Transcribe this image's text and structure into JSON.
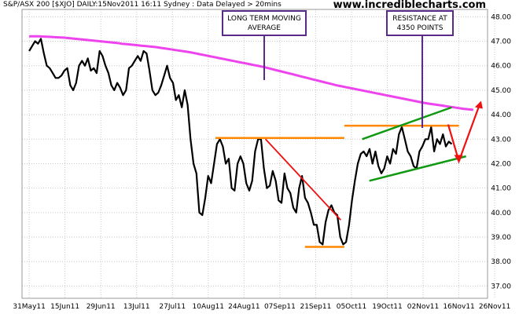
{
  "header": "S&P/ASX 200 [$XJO] DAILY:15Nov2011 16:11 Sydney : Data Delayed > 20mins",
  "watermark": "www.incrediblecharts.com",
  "colors": {
    "price": "#000000",
    "moving_average": "#ee44ee",
    "horizontal_levels": "#ff8800",
    "downtrend": "#ee1111",
    "channel": "#119911",
    "projection": "#ee1111",
    "annotation_border": "#5a2a8a",
    "grid": "#c8c8c8"
  },
  "annotations": [
    {
      "lines": [
        "LONG TERM MOVING",
        "AVERAGE"
      ],
      "points_to": "moving-average"
    },
    {
      "lines": [
        "RESISTANCE AT",
        "4350 POINTS"
      ],
      "points_to": "resistance"
    }
  ],
  "chart_data": {
    "type": "line",
    "title": "S&P/ASX 200 [$XJO] DAILY",
    "x_tick_labels": [
      "31May11",
      "15Jun11",
      "29Jun11",
      "13Jul11",
      "27Jul11",
      "10Aug11",
      "24Aug11",
      "07Sep11",
      "21Sep11",
      "05Oct11",
      "19Oct11",
      "02Nov11",
      "16Nov11",
      "26Nov11"
    ],
    "y_ticks": [
      37.0,
      38.0,
      39.0,
      40.0,
      41.0,
      42.0,
      43.0,
      44.0,
      45.0,
      46.0,
      47.0,
      48.0
    ],
    "y_tick_labels": [
      "37.00",
      "38.00",
      "39.00",
      "40.00",
      "41.00",
      "42.00",
      "43.00",
      "44.00",
      "45.00",
      "46.00",
      "47.00",
      "48.00"
    ],
    "ylim": [
      36.5,
      48.3
    ],
    "x_unit": "trading days from 31May11",
    "xlim": [
      -2,
      128
    ],
    "grid": true,
    "series": [
      {
        "values": [
          46.6,
          46.8,
          47.0,
          46.9,
          47.1,
          46.5,
          46.0,
          45.9,
          45.7,
          45.5,
          45.5,
          45.6,
          45.8,
          45.9,
          45.2,
          45.0,
          45.3,
          46.0,
          46.2,
          46.0,
          46.3,
          45.8,
          45.9,
          45.7,
          46.6,
          46.4,
          46.0,
          45.7,
          45.2,
          45.0,
          45.3,
          45.1,
          44.8,
          45.0,
          45.9,
          46.0,
          46.2,
          46.4,
          46.2,
          46.6,
          46.5,
          45.8,
          45.0,
          44.8,
          44.9,
          45.2,
          45.6,
          46.0,
          45.5,
          45.3,
          44.6,
          44.8,
          44.3,
          45.0,
          44.4,
          43.0,
          42.0,
          41.6,
          40.0,
          39.9,
          40.6,
          41.5,
          41.2,
          42.0,
          42.8,
          43.0,
          42.7,
          42.0,
          42.2,
          41.0,
          40.9,
          42.0,
          42.3,
          42.0,
          41.2,
          40.9,
          41.3,
          42.5,
          43.0,
          43.0,
          41.8,
          41.0,
          41.1,
          41.7,
          41.3,
          40.5,
          40.4,
          41.6,
          41.0,
          40.8,
          40.2,
          40.0,
          41.0,
          41.5,
          40.6,
          40.4,
          40.0,
          39.5,
          39.5,
          38.8,
          38.7,
          39.6,
          40.1,
          40.3,
          40.0,
          39.9,
          39.0,
          38.7,
          38.8,
          39.5,
          40.5,
          41.3,
          42.0,
          42.4,
          42.5,
          42.3,
          42.6,
          42.0,
          42.5,
          41.9,
          41.6,
          41.8,
          42.3,
          42.0,
          42.6,
          42.4,
          43.2,
          43.5,
          43.0,
          42.5,
          42.3,
          41.9,
          41.8,
          42.5,
          42.7,
          43.0,
          43.0,
          43.5,
          42.5,
          43.0,
          42.8,
          43.2,
          42.7,
          42.9,
          42.8
        ]
      },
      {
        "values": [
          47.2,
          47.2,
          47.2,
          47.19,
          47.18,
          47.17,
          47.16,
          47.15,
          47.13,
          47.11,
          47.09,
          47.07,
          47.05,
          47.03,
          47.01,
          46.99,
          46.97,
          46.95,
          46.93,
          46.9,
          46.88,
          46.86,
          46.84,
          46.82,
          46.8,
          46.78,
          46.76,
          46.73,
          46.7,
          46.67,
          46.64,
          46.61,
          46.58,
          46.55,
          46.51,
          46.47,
          46.43,
          46.39,
          46.35,
          46.31,
          46.27,
          46.23,
          46.19,
          46.15,
          46.11,
          46.07,
          46.03,
          45.99,
          45.95,
          45.9,
          45.85,
          45.8,
          45.75,
          45.7,
          45.65,
          45.6,
          45.55,
          45.5,
          45.45,
          45.4,
          45.35,
          45.3,
          45.25,
          45.2,
          45.16,
          45.12,
          45.08,
          45.04,
          45.0,
          44.96,
          44.92,
          44.88,
          44.84,
          44.8,
          44.76,
          44.72,
          44.68,
          44.64,
          44.6,
          44.56,
          44.52,
          44.48,
          44.45,
          44.42,
          44.39,
          44.36,
          44.33,
          44.3,
          44.27,
          44.24,
          44.22,
          44.2
        ]
      }
    ]
  }
}
